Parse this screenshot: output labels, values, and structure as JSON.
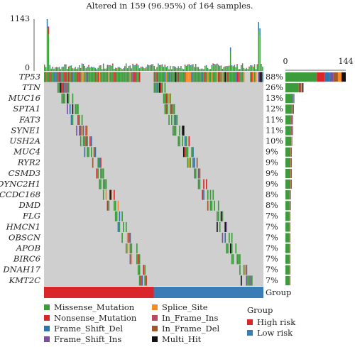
{
  "chart_data": {
    "type": "oncoplot",
    "title": "Altered in 159 (96.95%) of 164 samples.",
    "top_axis": {
      "max_label": "1143",
      "min_label": "0",
      "ylim": [
        0,
        1143
      ]
    },
    "side_axis": {
      "min_label": "0",
      "max_label": "144",
      "xlim": [
        0,
        144
      ]
    },
    "genes": [
      {
        "name": "TP53",
        "pct": "88%",
        "count": 144
      },
      {
        "name": "TTN",
        "pct": "26%",
        "count": 43
      },
      {
        "name": "MUC16",
        "pct": "13%",
        "count": 21
      },
      {
        "name": "SPTA1",
        "pct": "12%",
        "count": 20
      },
      {
        "name": "FAT3",
        "pct": "11%",
        "count": 18
      },
      {
        "name": "SYNE1",
        "pct": "11%",
        "count": 18
      },
      {
        "name": "USH2A",
        "pct": "10%",
        "count": 16
      },
      {
        "name": "MUC4",
        "pct": "9%",
        "count": 15
      },
      {
        "name": "RYR2",
        "pct": "9%",
        "count": 15
      },
      {
        "name": "CSMD3",
        "pct": "9%",
        "count": 15
      },
      {
        "name": "DYNC2H1",
        "pct": "9%",
        "count": 15
      },
      {
        "name": "CCDC168",
        "pct": "8%",
        "count": 13
      },
      {
        "name": "DMD",
        "pct": "8%",
        "count": 13
      },
      {
        "name": "FLG",
        "pct": "7%",
        "count": 12
      },
      {
        "name": "HMCN1",
        "pct": "7%",
        "count": 12
      },
      {
        "name": "OBSCN",
        "pct": "7%",
        "count": 12
      },
      {
        "name": "APOB",
        "pct": "7%",
        "count": 12
      },
      {
        "name": "BIRC6",
        "pct": "7%",
        "count": 12
      },
      {
        "name": "DNAH17",
        "pct": "7%",
        "count": 12
      },
      {
        "name": "KMT2C",
        "pct": "7%",
        "count": 12
      }
    ],
    "n_samples": 164,
    "n_high_risk": 82,
    "group_label": "Group",
    "variant_legend": [
      {
        "key": "missense",
        "label": "Missense_Mutation",
        "color": "#3c9c3c"
      },
      {
        "key": "nonsense",
        "label": "Nonsense_Mutation",
        "color": "#d9262a"
      },
      {
        "key": "fsdel",
        "label": "Frame_Shift_Del",
        "color": "#2e76ad"
      },
      {
        "key": "fsins",
        "label": "Frame_Shift_Ins",
        "color": "#7b4fa0"
      },
      {
        "key": "splice",
        "label": "Splice_Site",
        "color": "#f48b2b"
      },
      {
        "key": "ifins",
        "label": "In_Frame_Ins",
        "color": "#b94a60"
      },
      {
        "key": "ifdel",
        "label": "In_Frame_Del",
        "color": "#9c5a2c"
      },
      {
        "key": "multi",
        "label": "Multi_Hit",
        "color": "#111111"
      }
    ],
    "group_legend": {
      "title": "Group",
      "items": [
        {
          "label": "High risk",
          "color": "#d9262a"
        },
        {
          "label": "Low risk",
          "color": "#3a7cb5"
        }
      ]
    },
    "background_color": "#cfcfcf"
  }
}
